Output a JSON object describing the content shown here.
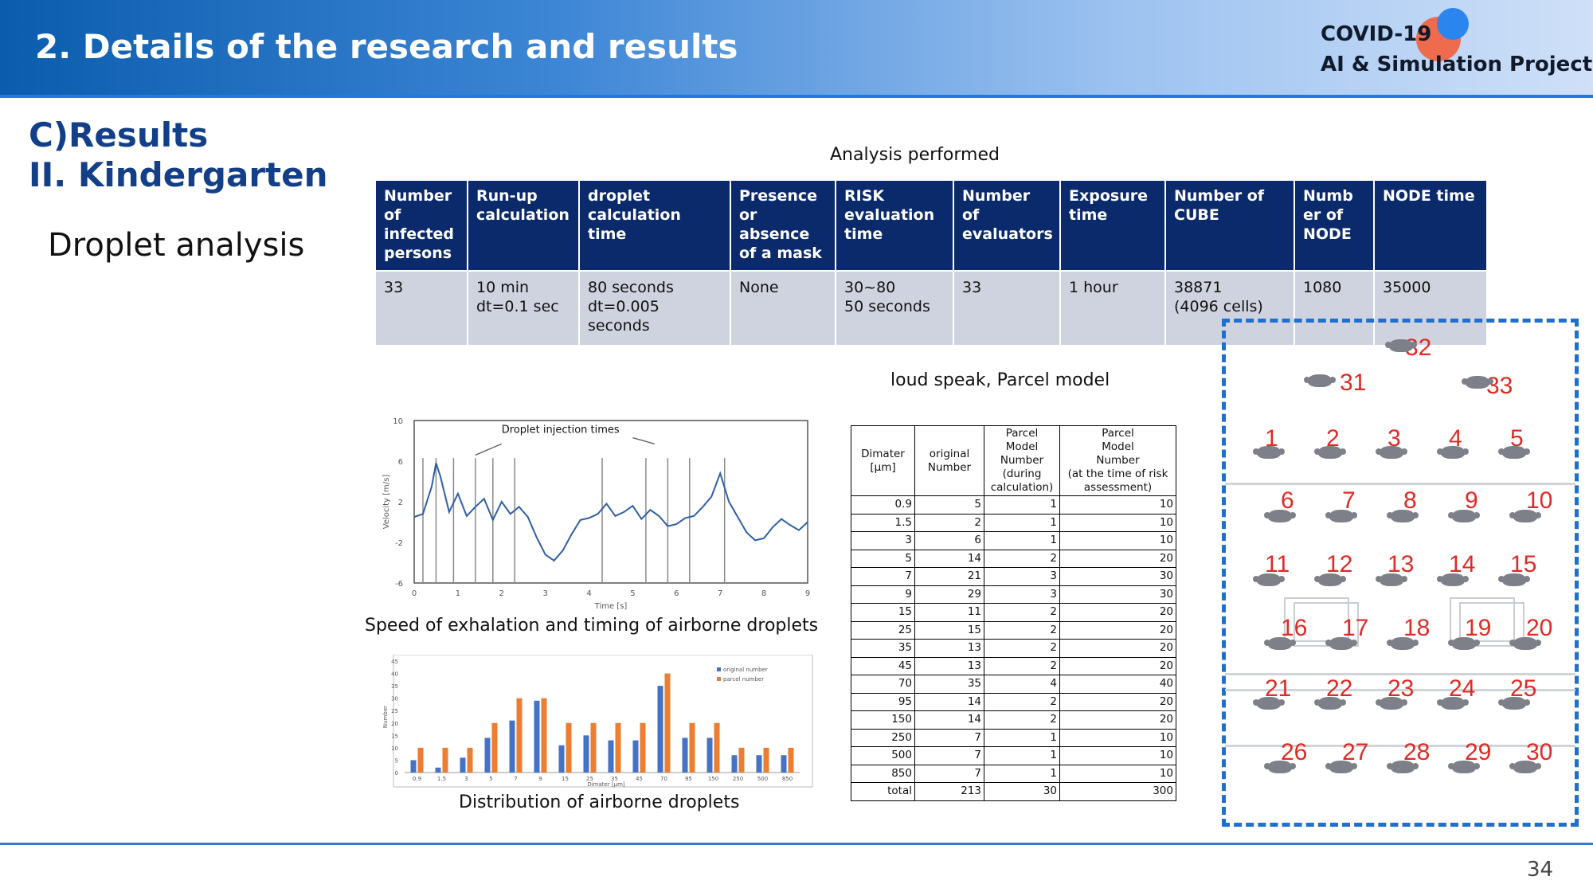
{
  "header": {
    "title": "2. Details of the research and results",
    "logo_line1": "COVID-19",
    "logo_line2": "AI & Simulation Project"
  },
  "section": {
    "line1": "C)Results",
    "line2": "II. Kindergarten",
    "subtitle": "Droplet analysis"
  },
  "params_table": {
    "caption": "Analysis performed",
    "headers": [
      "Number of infected persons",
      "Run-up calculation",
      "droplet calculation time",
      "Presence or absence of a mask",
      "RISK evaluation time",
      "Number of evaluators",
      "Exposure time",
      "Number of CUBE",
      "Numb er of NODE",
      "NODE time"
    ],
    "values": [
      "33",
      "10 min\ndt=0.1 sec",
      "80 seconds\ndt=0.005\nseconds",
      "None",
      "30~80\n50 seconds",
      "33",
      "1 hour",
      "38871\n(4096 cells)",
      "1080",
      "35000"
    ]
  },
  "captions": {
    "velocity": "Speed of exhalation and timing of airborne droplets",
    "distribution": "Distribution of airborne droplets",
    "parcel": "loud speak, Parcel model"
  },
  "chart_data": [
    {
      "type": "line",
      "annotation": "Droplet injection times",
      "xlabel": "Time [s]",
      "ylabel": "Velocity [m/s]",
      "xlim": [
        0,
        9
      ],
      "ylim": [
        -6,
        10
      ],
      "xticks": [
        "0",
        "1",
        "2",
        "3",
        "4",
        "5",
        "6",
        "7",
        "8",
        "9"
      ],
      "yticks": [
        "10",
        "6",
        "2",
        "-2",
        "-6"
      ],
      "injection_times": [
        0.2,
        0.5,
        0.9,
        1.4,
        1.8,
        2.3,
        4.3,
        5.3,
        5.8,
        6.3,
        7.1
      ],
      "x": [
        0,
        0.2,
        0.4,
        0.5,
        0.6,
        0.8,
        1.0,
        1.2,
        1.4,
        1.6,
        1.8,
        2.0,
        2.2,
        2.4,
        2.6,
        2.8,
        3.0,
        3.2,
        3.4,
        3.6,
        3.8,
        4.0,
        4.2,
        4.4,
        4.6,
        4.8,
        5.0,
        5.2,
        5.4,
        5.6,
        5.8,
        6.0,
        6.2,
        6.4,
        6.6,
        6.8,
        7.0,
        7.2,
        7.4,
        7.6,
        7.8,
        8.0,
        8.2,
        8.4,
        8.6,
        8.8,
        9.0
      ],
      "y": [
        0.5,
        0.8,
        3.5,
        5.8,
        4.5,
        1.0,
        2.8,
        0.6,
        1.5,
        2.3,
        0.2,
        2.0,
        0.8,
        1.5,
        0.5,
        -1.5,
        -3.2,
        -3.8,
        -2.8,
        -1.2,
        0.2,
        0.4,
        0.8,
        1.8,
        0.6,
        1.0,
        1.6,
        0.3,
        1.2,
        0.6,
        -0.4,
        -0.2,
        0.4,
        0.6,
        1.5,
        2.5,
        4.8,
        2.0,
        0.5,
        -1.0,
        -1.8,
        -1.6,
        -0.5,
        0.3,
        -0.3,
        -0.8,
        0.0
      ]
    },
    {
      "type": "bar",
      "xlabel": "Dimater [μm]",
      "ylabel": "Number",
      "ylim": [
        0,
        45
      ],
      "yticks": [
        "0",
        "5",
        "10",
        "15",
        "20",
        "25",
        "30",
        "35",
        "40",
        "45"
      ],
      "legend_position": "top-right",
      "categories": [
        "0.9",
        "1.5",
        "3",
        "5",
        "7",
        "9",
        "15",
        "25",
        "35",
        "45",
        "70",
        "95",
        "150",
        "250",
        "500",
        "850"
      ],
      "series": [
        {
          "name": "original number",
          "color": "#4472c4",
          "values": [
            5,
            2,
            6,
            14,
            21,
            29,
            11,
            15,
            13,
            13,
            35,
            14,
            14,
            7,
            7,
            7
          ]
        },
        {
          "name": "parcel number",
          "color": "#ed7d31",
          "values": [
            10,
            10,
            10,
            20,
            30,
            30,
            20,
            20,
            20,
            20,
            40,
            20,
            20,
            10,
            10,
            10
          ]
        }
      ]
    }
  ],
  "dist_table": {
    "headers": [
      "Dimater\n[μm]",
      "original\nNumber",
      "Parcel\nModel\nNumber\n(during\ncalculation)",
      "Parcel\nModel\nNumber\n(at the time of risk\nassessment)"
    ],
    "rows": [
      [
        "0.9",
        "5",
        "1",
        "10"
      ],
      [
        "1.5",
        "2",
        "1",
        "10"
      ],
      [
        "3",
        "6",
        "1",
        "10"
      ],
      [
        "5",
        "14",
        "2",
        "20"
      ],
      [
        "7",
        "21",
        "3",
        "30"
      ],
      [
        "9",
        "29",
        "3",
        "30"
      ],
      [
        "15",
        "11",
        "2",
        "20"
      ],
      [
        "25",
        "15",
        "2",
        "20"
      ],
      [
        "35",
        "13",
        "2",
        "20"
      ],
      [
        "45",
        "13",
        "2",
        "20"
      ],
      [
        "70",
        "35",
        "4",
        "40"
      ],
      [
        "95",
        "14",
        "2",
        "20"
      ],
      [
        "150",
        "14",
        "2",
        "20"
      ],
      [
        "250",
        "7",
        "1",
        "10"
      ],
      [
        "500",
        "7",
        "1",
        "10"
      ],
      [
        "850",
        "7",
        "1",
        "10"
      ],
      [
        "total",
        "213",
        "30",
        "300"
      ]
    ]
  },
  "floor_labels": [
    "1",
    "2",
    "3",
    "4",
    "5",
    "6",
    "7",
    "8",
    "9",
    "10",
    "11",
    "12",
    "13",
    "14",
    "15",
    "16",
    "17",
    "18",
    "19",
    "20",
    "21",
    "22",
    "23",
    "24",
    "25",
    "26",
    "27",
    "28",
    "29",
    "30",
    "31",
    "32",
    "33"
  ],
  "page_number": "34",
  "colors": {
    "header_dark": "#0b5cad",
    "table_header": "#0b2a6b",
    "label_red": "#e02a24",
    "border_blue": "#1f6fcf"
  }
}
